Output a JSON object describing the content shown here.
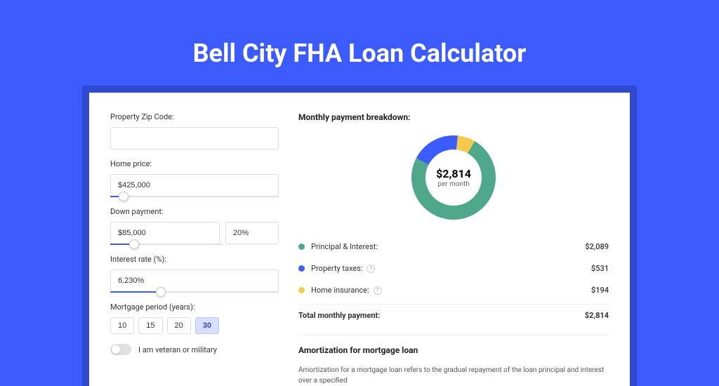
{
  "header": {
    "title": "Bell City FHA Loan Calculator"
  },
  "form": {
    "zip": {
      "label": "Property Zip Code:",
      "value": ""
    },
    "home_price": {
      "label": "Home price:",
      "value": "$425,000",
      "slider_pct": 8
    },
    "down_payment": {
      "label": "Down payment:",
      "value": "$85,000",
      "pct": "20%",
      "slider_pct": 21
    },
    "interest": {
      "label": "Interest rate (%):",
      "value": "6.230%",
      "slider_pct": 30
    },
    "period": {
      "label": "Mortgage period (years):",
      "options": [
        "10",
        "15",
        "20",
        "30"
      ],
      "selected": "30"
    },
    "veteran": {
      "label": "I am veteran or military",
      "checked": false
    }
  },
  "breakdown": {
    "title": "Monthly payment breakdown:",
    "donut": {
      "amount": "$2,814",
      "sub": "per month",
      "slices": [
        {
          "color": "#4fa88a",
          "pct": 74.2
        },
        {
          "color": "#3b5bfd",
          "pct": 18.9
        },
        {
          "color": "#f3c94e",
          "pct": 6.9
        }
      ],
      "bg": "#ffffff",
      "thickness": 20
    },
    "items": [
      {
        "color": "#4fa88a",
        "label": "Principal & Interest:",
        "value": "$2,089",
        "info": false
      },
      {
        "color": "#3b5bfd",
        "label": "Property taxes:",
        "value": "$531",
        "info": true
      },
      {
        "color": "#f3c94e",
        "label": "Home insurance:",
        "value": "$194",
        "info": true
      }
    ],
    "total": {
      "label": "Total monthly payment:",
      "value": "$2,814"
    }
  },
  "amortization": {
    "title": "Amortization for mortgage loan",
    "text": "Amortization for a mortgage loan refers to the gradual repayment of the loan principal and interest over a specified"
  }
}
